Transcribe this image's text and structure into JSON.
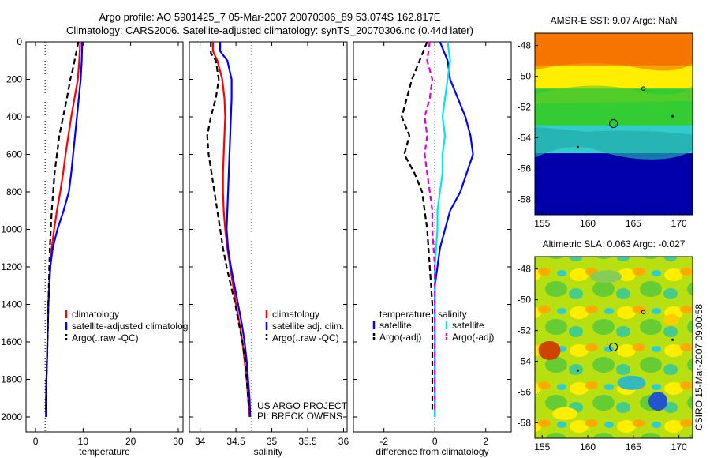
{
  "figure": {
    "title_line1": "Argo profile: AO 5901425_7 05-Mar-2007 20070306_89 53.074S 162.817E",
    "title_line2": "Climatology: CARS2006. Satellite-adjusted climatology: synTS_20070306.nc (0.44d later)",
    "side_label": "CSIRO 15-Mar-2007 09:00:58",
    "project_line1": "US ARGO PROJECT",
    "project_line2": "PI: BRECK OWENS"
  },
  "colors": {
    "climatology": "#ff0000",
    "satellite": "#0000ff",
    "argo": "#000000",
    "sal_satellite": "#00e5ee",
    "sal_argo": "#dd00dd"
  },
  "chart_data": [
    {
      "type": "line",
      "xlabel": "temperature",
      "ylabel": "",
      "xlim": [
        -2,
        31
      ],
      "ylim": [
        2080,
        0
      ],
      "x_ticks": [
        0,
        10,
        20,
        30
      ],
      "y_ticks": [
        0,
        200,
        400,
        600,
        800,
        1000,
        1200,
        1400,
        1600,
        1800,
        2000
      ],
      "reference_x": 2,
      "legend": [
        "climatology",
        "satellite-adjusted climatolog",
        "Argo(..raw -QC)"
      ],
      "series": [
        {
          "name": "climatology",
          "style": "solid",
          "color": "#ff0000",
          "points": [
            [
              9.4,
              0
            ],
            [
              9.2,
              100
            ],
            [
              8.9,
              200
            ],
            [
              8.2,
              300
            ],
            [
              7.5,
              400
            ],
            [
              6.9,
              500
            ],
            [
              6.3,
              600
            ],
            [
              5.8,
              700
            ],
            [
              5.2,
              800
            ],
            [
              4.5,
              900
            ],
            [
              3.9,
              1000
            ],
            [
              3.4,
              1100
            ],
            [
              3.1,
              1200
            ],
            [
              2.9,
              1300
            ],
            [
              2.7,
              1400
            ],
            [
              2.6,
              1500
            ],
            [
              2.5,
              1600
            ],
            [
              2.4,
              1700
            ],
            [
              2.3,
              1800
            ],
            [
              2.3,
              1900
            ],
            [
              2.2,
              2000
            ]
          ]
        },
        {
          "name": "satellite-adjusted climatolog",
          "style": "solid",
          "color": "#0000ff",
          "points": [
            [
              9.8,
              0
            ],
            [
              9.7,
              100
            ],
            [
              9.5,
              200
            ],
            [
              9.1,
              300
            ],
            [
              8.7,
              400
            ],
            [
              8.3,
              500
            ],
            [
              7.9,
              600
            ],
            [
              7.5,
              700
            ],
            [
              7.0,
              800
            ],
            [
              5.9,
              900
            ],
            [
              4.6,
              1000
            ],
            [
              3.6,
              1100
            ],
            [
              3.1,
              1200
            ],
            [
              2.9,
              1300
            ],
            [
              2.7,
              1400
            ],
            [
              2.6,
              1500
            ],
            [
              2.5,
              1600
            ],
            [
              2.4,
              1700
            ],
            [
              2.3,
              1800
            ],
            [
              2.2,
              1900
            ],
            [
              2.2,
              2000
            ]
          ]
        },
        {
          "name": "Argo(..raw -QC)",
          "style": "dashed",
          "color": "#000000",
          "points": [
            [
              9.0,
              0
            ],
            [
              8.2,
              100
            ],
            [
              7.8,
              150
            ],
            [
              7.3,
              200
            ],
            [
              6.6,
              300
            ],
            [
              5.8,
              400
            ],
            [
              5.0,
              500
            ],
            [
              4.5,
              600
            ],
            [
              4.0,
              700
            ],
            [
              3.7,
              800
            ],
            [
              3.4,
              900
            ],
            [
              3.2,
              1000
            ],
            [
              3.0,
              1100
            ],
            [
              2.9,
              1200
            ],
            [
              2.8,
              1300
            ],
            [
              2.7,
              1400
            ],
            [
              2.6,
              1500
            ],
            [
              2.5,
              1600
            ],
            [
              2.4,
              1700
            ],
            [
              2.3,
              1800
            ],
            [
              2.3,
              1900
            ],
            [
              2.2,
              1960
            ]
          ]
        }
      ]
    },
    {
      "type": "line",
      "xlabel": "salinity",
      "ylabel": "",
      "xlim": [
        33.85,
        36.05
      ],
      "ylim": [
        2080,
        0
      ],
      "x_ticks": [
        34,
        34.5,
        35,
        35.5,
        36
      ],
      "y_ticks": [
        0,
        200,
        400,
        600,
        800,
        1000,
        1200,
        1400,
        1600,
        1800,
        2000
      ],
      "reference_x": 34.72,
      "legend": [
        "climatology",
        "satellite adj. clim.",
        "Argo(..raw -QC)"
      ],
      "series": [
        {
          "name": "climatology",
          "style": "solid",
          "color": "#ff0000",
          "points": [
            [
              34.18,
              0
            ],
            [
              34.18,
              50
            ],
            [
              34.24,
              100
            ],
            [
              34.31,
              200
            ],
            [
              34.34,
              300
            ],
            [
              34.35,
              400
            ],
            [
              34.34,
              500
            ],
            [
              34.33,
              600
            ],
            [
              34.32,
              700
            ],
            [
              34.32,
              800
            ],
            [
              34.33,
              900
            ],
            [
              34.35,
              1000
            ],
            [
              34.38,
              1100
            ],
            [
              34.42,
              1200
            ],
            [
              34.46,
              1300
            ],
            [
              34.5,
              1400
            ],
            [
              34.55,
              1500
            ],
            [
              34.59,
              1600
            ],
            [
              34.62,
              1700
            ],
            [
              34.65,
              1800
            ],
            [
              34.67,
              1900
            ],
            [
              34.69,
              2000
            ]
          ]
        },
        {
          "name": "satellite adj. clim.",
          "style": "solid",
          "color": "#0000ff",
          "points": [
            [
              34.28,
              0
            ],
            [
              34.28,
              50
            ],
            [
              34.38,
              100
            ],
            [
              34.44,
              200
            ],
            [
              34.44,
              300
            ],
            [
              34.43,
              400
            ],
            [
              34.42,
              500
            ],
            [
              34.41,
              600
            ],
            [
              34.4,
              700
            ],
            [
              34.39,
              800
            ],
            [
              34.38,
              900
            ],
            [
              34.37,
              1000
            ],
            [
              34.39,
              1100
            ],
            [
              34.43,
              1200
            ],
            [
              34.48,
              1300
            ],
            [
              34.53,
              1400
            ],
            [
              34.58,
              1500
            ],
            [
              34.62,
              1600
            ],
            [
              34.65,
              1700
            ],
            [
              34.67,
              1800
            ],
            [
              34.69,
              1900
            ],
            [
              34.7,
              2000
            ]
          ]
        },
        {
          "name": "Argo(..raw -QC)",
          "style": "dashed",
          "color": "#000000",
          "points": [
            [
              34.15,
              0
            ],
            [
              34.15,
              60
            ],
            [
              34.22,
              100
            ],
            [
              34.26,
              200
            ],
            [
              34.22,
              300
            ],
            [
              34.15,
              400
            ],
            [
              34.1,
              500
            ],
            [
              34.12,
              600
            ],
            [
              34.16,
              700
            ],
            [
              34.2,
              800
            ],
            [
              34.24,
              900
            ],
            [
              34.28,
              1000
            ],
            [
              34.32,
              1100
            ],
            [
              34.37,
              1200
            ],
            [
              34.43,
              1300
            ],
            [
              34.49,
              1400
            ],
            [
              34.54,
              1500
            ],
            [
              34.59,
              1600
            ],
            [
              34.63,
              1700
            ],
            [
              34.65,
              1800
            ],
            [
              34.67,
              1900
            ],
            [
              34.68,
              1960
            ]
          ]
        }
      ]
    },
    {
      "type": "line",
      "xlabel": "difference from climatology",
      "ylabel": "",
      "xlim": [
        -3.2,
        3.0
      ],
      "ylim": [
        2080,
        0
      ],
      "x_ticks": [
        -2,
        0,
        2
      ],
      "y_ticks": [
        0,
        200,
        400,
        600,
        800,
        1000,
        1200,
        1400,
        1600,
        1800,
        2000
      ],
      "reference_x": 0,
      "legend_headers": [
        "temperature",
        "salinity"
      ],
      "legend": [
        "satellite",
        "Argo(-adj)",
        "satellite",
        "Argo(-adj)"
      ],
      "series": [
        {
          "name": "satellite",
          "group": "temperature",
          "style": "solid",
          "color": "#0000ff",
          "points": [
            [
              0.2,
              0
            ],
            [
              0.5,
              100
            ],
            [
              0.6,
              200
            ],
            [
              0.9,
              300
            ],
            [
              1.2,
              400
            ],
            [
              1.4,
              500
            ],
            [
              1.5,
              600
            ],
            [
              1.0,
              800
            ],
            [
              0.6,
              900
            ],
            [
              0.4,
              1000
            ],
            [
              0.2,
              1100
            ],
            [
              0.1,
              1200
            ],
            [
              0.0,
              1300
            ],
            [
              0.0,
              1400
            ],
            [
              0.0,
              1500
            ],
            [
              0.0,
              1600
            ],
            [
              0.0,
              1700
            ],
            [
              0.0,
              1800
            ],
            [
              0.0,
              1900
            ],
            [
              0.0,
              2000
            ]
          ]
        },
        {
          "name": "Argo(-adj)",
          "group": "temperature",
          "style": "dashed",
          "color": "#000000",
          "points": [
            [
              -0.3,
              0
            ],
            [
              -0.6,
              100
            ],
            [
              -0.9,
              200
            ],
            [
              -1.1,
              300
            ],
            [
              -1.3,
              400
            ],
            [
              -1.0,
              500
            ],
            [
              -1.2,
              600
            ],
            [
              -0.8,
              700
            ],
            [
              -0.5,
              800
            ],
            [
              -0.4,
              900
            ],
            [
              -0.3,
              1000
            ],
            [
              -0.2,
              1200
            ],
            [
              -0.1,
              1400
            ],
            [
              -0.1,
              1600
            ],
            [
              -0.1,
              1800
            ],
            [
              -0.1,
              1960
            ]
          ]
        },
        {
          "name": "satellite",
          "group": "salinity",
          "style": "solid",
          "color": "#00e5ee",
          "points": [
            [
              0.5,
              0
            ],
            [
              0.6,
              100
            ],
            [
              0.5,
              200
            ],
            [
              0.4,
              300
            ],
            [
              0.3,
              400
            ],
            [
              0.4,
              500
            ],
            [
              0.3,
              600
            ],
            [
              0.3,
              700
            ],
            [
              0.2,
              800
            ],
            [
              0.1,
              900
            ],
            [
              0.1,
              1000
            ],
            [
              0.0,
              1200
            ],
            [
              0.0,
              1400
            ],
            [
              0.0,
              1600
            ],
            [
              0.0,
              1800
            ],
            [
              0.0,
              2000
            ]
          ]
        },
        {
          "name": "Argo(-adj)",
          "group": "salinity",
          "style": "dashed",
          "color": "#dd00dd",
          "points": [
            [
              -0.2,
              0
            ],
            [
              -0.3,
              100
            ],
            [
              -0.1,
              200
            ],
            [
              -0.2,
              300
            ],
            [
              -0.4,
              400
            ],
            [
              -0.3,
              500
            ],
            [
              -0.4,
              600
            ],
            [
              -0.3,
              700
            ],
            [
              -0.2,
              800
            ],
            [
              -0.1,
              900
            ],
            [
              -0.1,
              1000
            ],
            [
              0.0,
              1200
            ],
            [
              0.0,
              1400
            ],
            [
              0.0,
              1600
            ],
            [
              0.0,
              1800
            ],
            [
              0.0,
              1960
            ]
          ]
        }
      ]
    },
    {
      "type": "heatmap",
      "title": "AMSR-E SST: 9.07 Argo: NaN",
      "xlim": [
        154.2,
        171.5
      ],
      "ylim": [
        -59,
        -47.2
      ],
      "x_ticks": [
        155,
        160,
        165,
        170
      ],
      "y_ticks": [
        -48,
        -50,
        -52,
        -54,
        -56,
        -58
      ],
      "bands": [
        {
          "lat_top": -47.2,
          "lat_bottom": -49.3,
          "color": "#ff8800"
        },
        {
          "lat_top": -49.3,
          "lat_bottom": -50.8,
          "color": "#ffee00"
        },
        {
          "lat_top": -50.8,
          "lat_bottom": -53.2,
          "color": "#33cc33"
        },
        {
          "lat_top": -53.2,
          "lat_bottom": -55.0,
          "color": "#33cccc"
        },
        {
          "lat_top": -55.0,
          "lat_bottom": -59.0,
          "color": "#0000aa"
        }
      ],
      "profile_lon": 162.817,
      "profile_lat": -53.074
    },
    {
      "type": "heatmap",
      "title": "Altimetric SLA: 0.063 Argo: -0.027",
      "xlim": [
        154.2,
        171.5
      ],
      "ylim": [
        -59,
        -47.2
      ],
      "x_ticks": [
        155,
        160,
        165,
        170
      ],
      "y_ticks": [
        -48,
        -50,
        -52,
        -54,
        -56,
        -58
      ],
      "bands": [],
      "profile_lon": 162.817,
      "profile_lat": -53.074
    }
  ]
}
